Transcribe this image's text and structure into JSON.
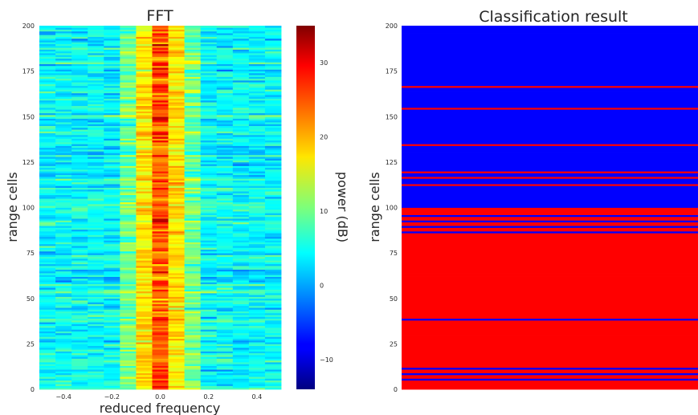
{
  "chart_data": [
    {
      "type": "heatmap",
      "title": "FFT",
      "xlabel": "reduced frequency",
      "ylabel": "range cells",
      "xlim": [
        -0.5,
        0.5
      ],
      "ylim": [
        0,
        200
      ],
      "x_ticks": [
        "−0.4",
        "−0.2",
        "0.0",
        "0.2",
        "0.4"
      ],
      "x_tick_values": [
        -0.4,
        -0.2,
        0.0,
        0.2,
        0.4
      ],
      "y_ticks": [
        "0",
        "25",
        "50",
        "75",
        "100",
        "125",
        "150",
        "175",
        "200"
      ],
      "y_tick_values": [
        0,
        25,
        50,
        75,
        100,
        125,
        150,
        175,
        200
      ],
      "colormap": "jet",
      "n_freq_bins": 15,
      "n_range_cells": 200,
      "colorbar": {
        "label": "power (dB)",
        "vmin": -14,
        "vmax": 35,
        "ticks": [
          "−10",
          "0",
          "10",
          "20",
          "30"
        ],
        "tick_values": [
          -10,
          0,
          10,
          20,
          30
        ]
      },
      "values_note": "Approximate power per cell: background ~5 dB with variation, strong peak (~20-35 dB) in the 0.0 frequency bin column, mid (~17-25 dB) at ±0.05 to ±0.1",
      "grid": false
    },
    {
      "type": "heatmap",
      "title": "Classification result",
      "ylabel": "range cells",
      "ylim": [
        0,
        200
      ],
      "y_ticks": [
        "0",
        "25",
        "50",
        "75",
        "100",
        "125",
        "150",
        "175",
        "200"
      ],
      "y_tick_values": [
        0,
        25,
        50,
        75,
        100,
        125,
        150,
        175,
        200
      ],
      "colors": {
        "class_0": "#0000ff",
        "class_1": "#ff0000"
      },
      "class_1_base_range": [
        0,
        100
      ],
      "class_1_exception_cells": [
        5,
        8,
        11,
        38,
        86,
        89,
        92,
        95
      ],
      "class_0_exception_cells": [
        112,
        116,
        119,
        134,
        154,
        166
      ],
      "grid": false
    }
  ]
}
